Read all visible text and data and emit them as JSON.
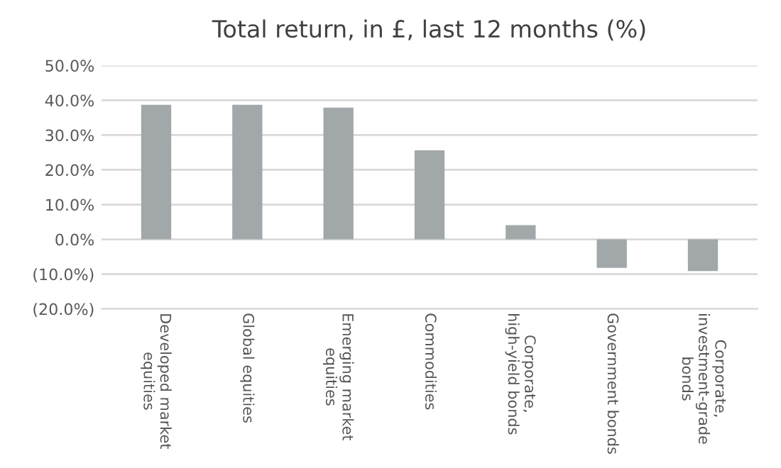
{
  "chart_data": {
    "type": "bar",
    "title": "Total return, in £, last 12 months (%)",
    "categories": [
      "Developed market equities",
      "Global equities",
      "Emerging market equities",
      "Commodities",
      "Corporate, high-yield bonds",
      "Government bonds",
      "Corporate, investment-grade bonds"
    ],
    "values": [
      38.7,
      38.7,
      37.9,
      25.6,
      4.1,
      -8.2,
      -9.1
    ],
    "color": "#a2a8aa",
    "ylim": [
      -20,
      50
    ],
    "yticks": [
      {
        "value": -20,
        "label": "(20.0%)"
      },
      {
        "value": -10,
        "label": "(10.0%)"
      },
      {
        "value": 0,
        "label": "0.0%"
      },
      {
        "value": 10,
        "label": "10.0%"
      },
      {
        "value": 20,
        "label": "20.0%"
      },
      {
        "value": 30,
        "label": "30.0%"
      },
      {
        "value": 40,
        "label": "40.0%"
      },
      {
        "value": 50,
        "label": "50.0%"
      }
    ],
    "grid": "y"
  }
}
